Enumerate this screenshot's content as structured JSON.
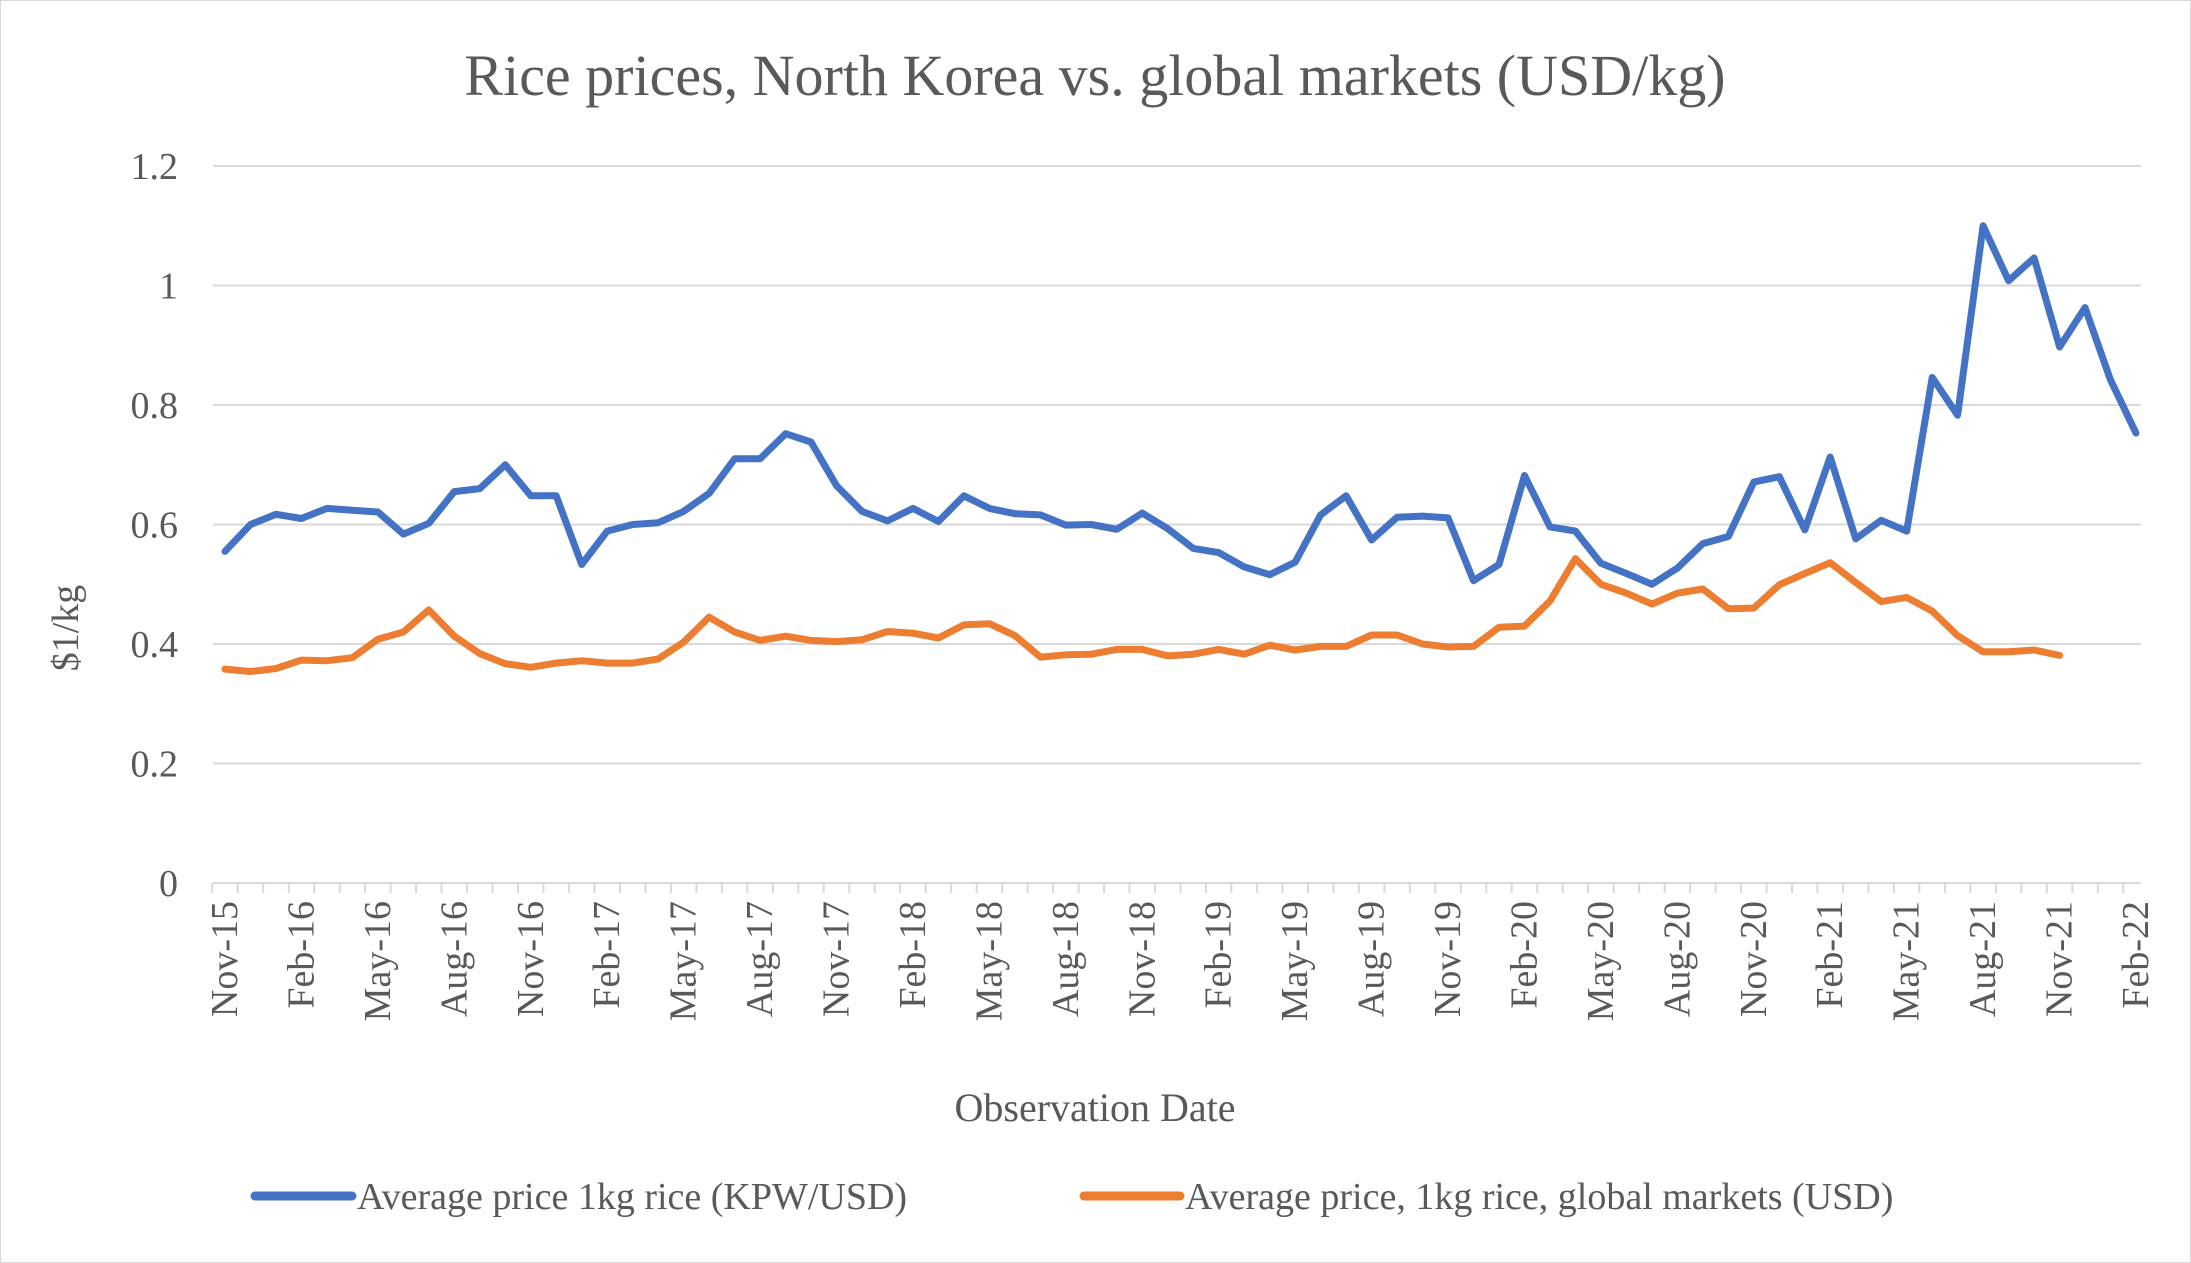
{
  "chart_data": {
    "type": "line",
    "title": "Rice prices, North Korea vs. global markets (USD/kg)",
    "xlabel": "Observation Date",
    "ylabel": "$1/kg",
    "ylim": [
      0,
      1.2
    ],
    "yticks": [
      "0",
      "0.2",
      "0.4",
      "0.6",
      "0.8",
      "1",
      "1.2"
    ],
    "xticks": [
      "Nov-15",
      "Feb-16",
      "May-16",
      "Aug-16",
      "Nov-16",
      "Feb-17",
      "May-17",
      "Aug-17",
      "Nov-17",
      "Feb-18",
      "May-18",
      "Aug-18",
      "Nov-18",
      "Feb-19",
      "May-19",
      "Aug-19",
      "Nov-19",
      "Feb-20",
      "May-20",
      "Aug-20",
      "Nov-20",
      "Feb-21",
      "May-21",
      "Aug-21",
      "Nov-21",
      "Feb-22"
    ],
    "grid": true,
    "legend_position": "bottom",
    "series": [
      {
        "name": "Average price 1kg rice (KPW/USD)",
        "color": "#4472C4",
        "values": [
          0.555,
          0.6,
          0.617,
          0.61,
          0.627,
          0.624,
          0.621,
          0.584,
          0.602,
          0.655,
          0.66,
          0.7,
          0.648,
          0.648,
          0.533,
          0.589,
          0.6,
          0.603,
          0.622,
          0.652,
          0.71,
          0.71,
          0.752,
          0.738,
          0.665,
          0.622,
          0.606,
          0.627,
          0.605,
          0.648,
          0.627,
          0.618,
          0.616,
          0.599,
          0.6,
          0.592,
          0.619,
          0.593,
          0.56,
          0.553,
          0.529,
          0.516,
          0.537,
          0.616,
          0.648,
          0.574,
          0.612,
          0.614,
          0.611,
          0.506,
          0.533,
          0.682,
          0.596,
          0.589,
          0.535,
          0.518,
          0.5,
          0.527,
          0.568,
          0.58,
          0.671,
          0.68,
          0.591,
          0.713,
          0.576,
          0.607,
          0.589,
          0.846,
          0.783,
          1.1,
          1.008,
          1.046,
          0.897,
          0.963,
          0.842,
          0.753
        ]
      },
      {
        "name": "Average price, 1kg rice, global markets (USD)",
        "color": "#ED7D31",
        "values": [
          0.358,
          0.354,
          0.359,
          0.373,
          0.372,
          0.377,
          0.408,
          0.42,
          0.457,
          0.413,
          0.384,
          0.367,
          0.361,
          0.368,
          0.372,
          0.368,
          0.368,
          0.375,
          0.403,
          0.445,
          0.42,
          0.406,
          0.413,
          0.406,
          0.404,
          0.407,
          0.421,
          0.418,
          0.41,
          0.432,
          0.434,
          0.414,
          0.378,
          0.382,
          0.383,
          0.391,
          0.391,
          0.38,
          0.383,
          0.391,
          0.383,
          0.398,
          0.39,
          0.396,
          0.396,
          0.415,
          0.415,
          0.4,
          0.395,
          0.396,
          0.428,
          0.43,
          0.472,
          0.543,
          0.5,
          0.485,
          0.467,
          0.485,
          0.492,
          0.459,
          0.46,
          0.499,
          0.518,
          0.536,
          0.503,
          0.471,
          0.478,
          0.455,
          0.414,
          0.387,
          0.387,
          0.39,
          0.381
        ]
      }
    ]
  }
}
